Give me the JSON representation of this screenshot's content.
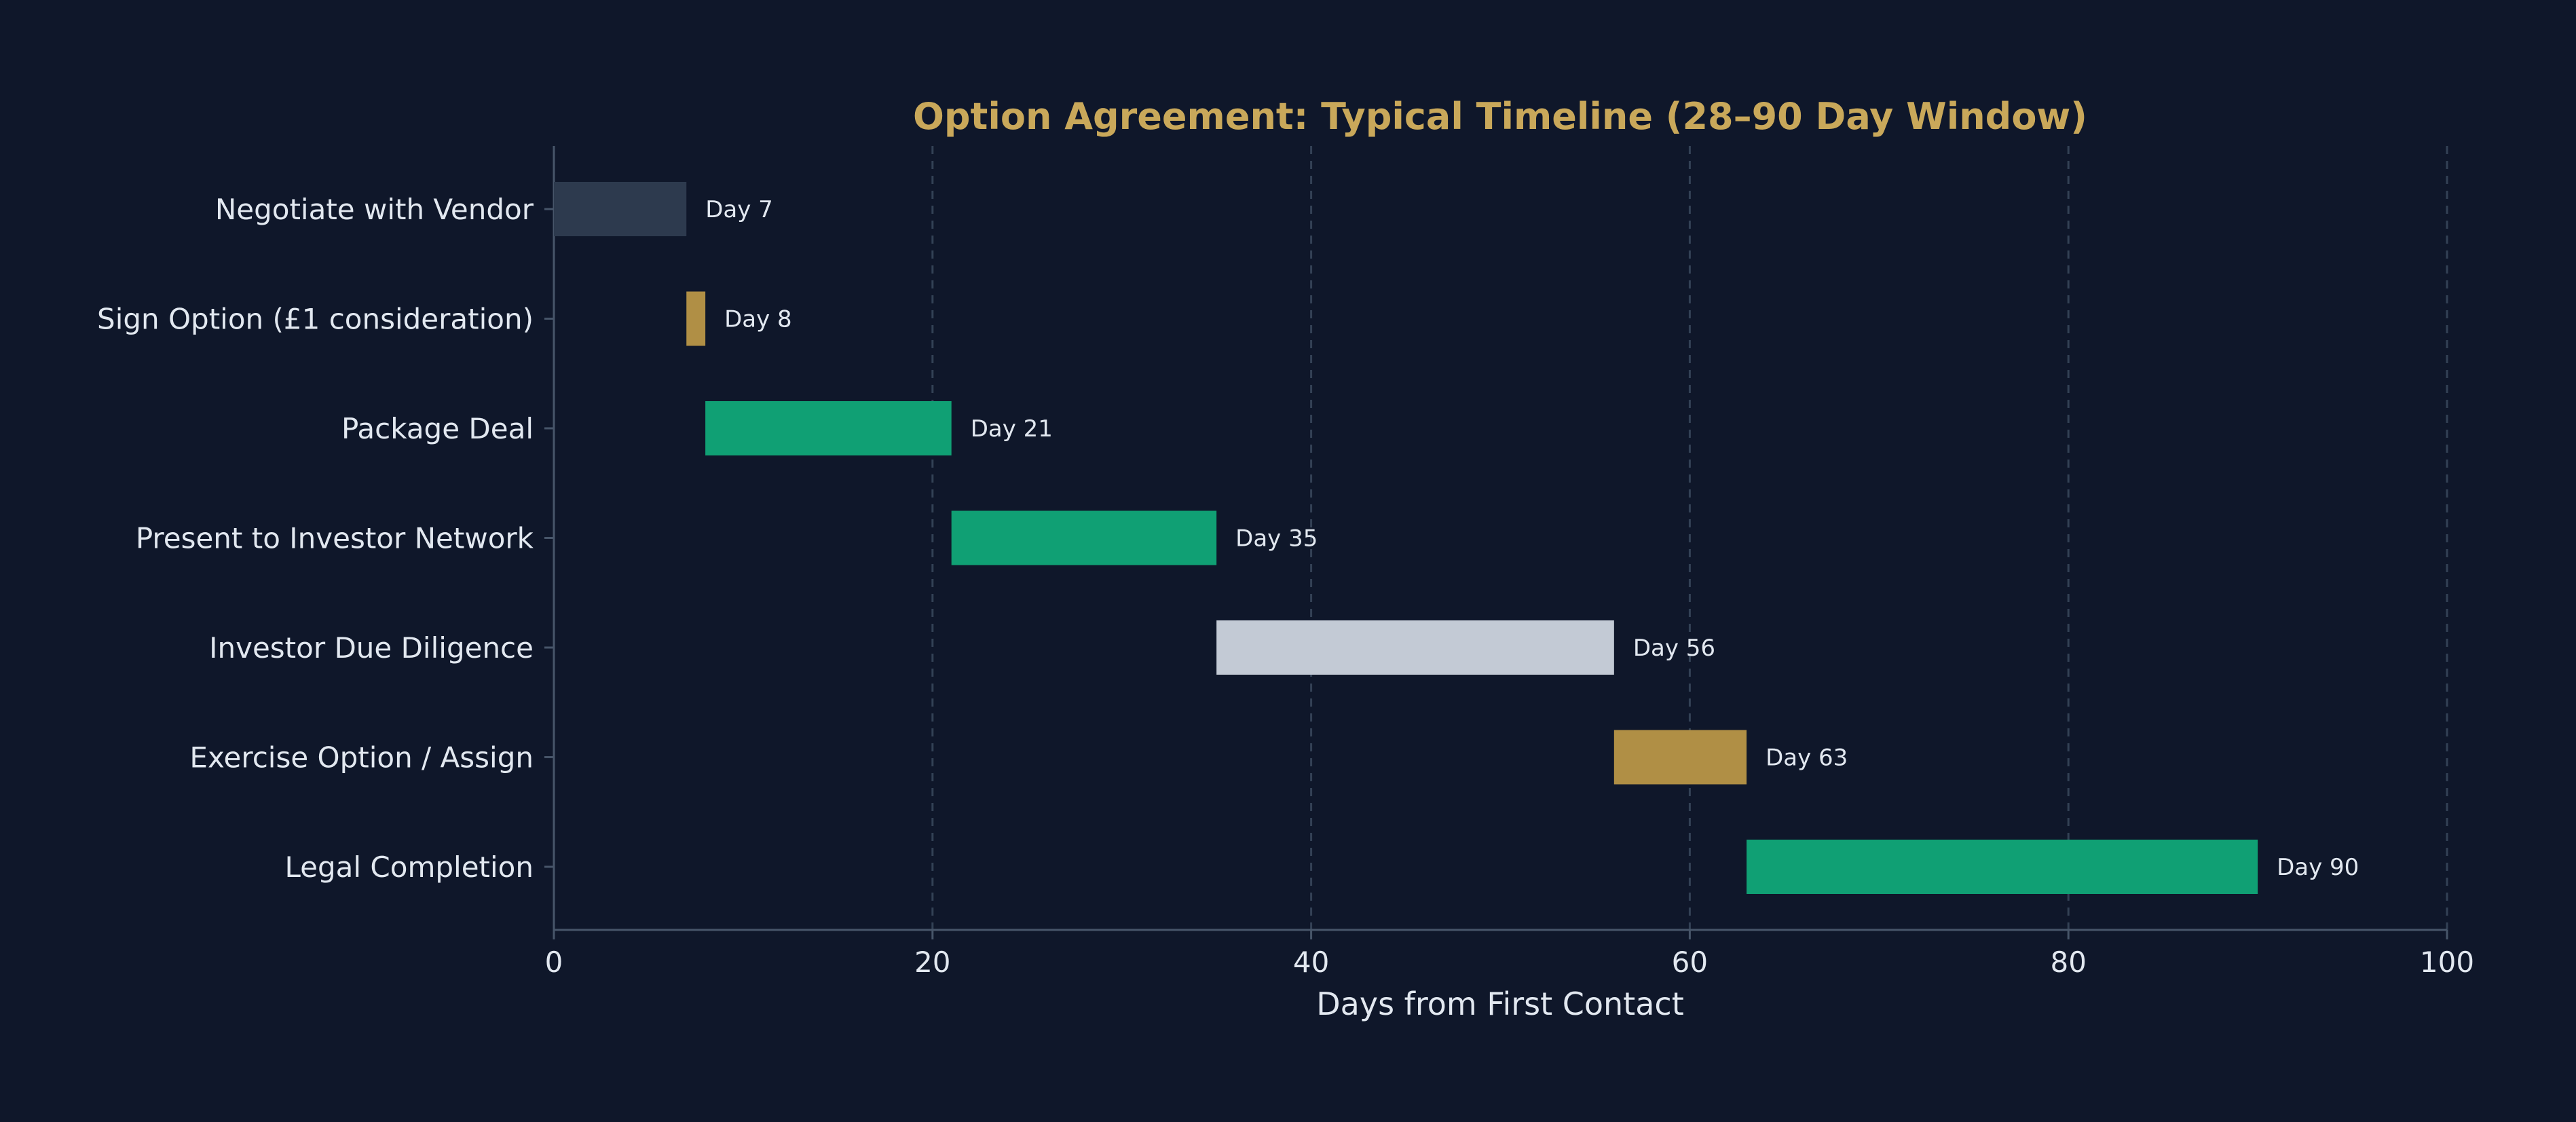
{
  "chart_data": {
    "type": "bar",
    "orientation": "horizontal",
    "subtype": "gantt",
    "title": "Option Agreement: Typical Timeline (28–90 Day Window)",
    "xlabel": "Days from First Contact",
    "ylabel": "",
    "xlim": [
      0,
      100
    ],
    "xticks": [
      0,
      20,
      40,
      60,
      80,
      100
    ],
    "xtick_labels": [
      "0",
      "20",
      "40",
      "60",
      "80",
      "100"
    ],
    "grid": "vertical dashed",
    "legend": "none",
    "tasks": [
      {
        "name": "Negotiate with Vendor",
        "start": 0,
        "end": 7,
        "label": "Day 7",
        "color": "#2d3a4e"
      },
      {
        "name": "Sign Option (£1 consideration)",
        "start": 7,
        "end": 8,
        "label": "Day 8",
        "color": "#b08f45"
      },
      {
        "name": "Package Deal",
        "start": 8,
        "end": 21,
        "label": "Day 21",
        "color": "#10a074"
      },
      {
        "name": "Present to Investor Network",
        "start": 21,
        "end": 35,
        "label": "Day 35",
        "color": "#10a074"
      },
      {
        "name": "Investor Due Diligence",
        "start": 35,
        "end": 56,
        "label": "Day 56",
        "color": "#c3cad5"
      },
      {
        "name": "Exercise Option / Assign",
        "start": 56,
        "end": 63,
        "label": "Day 63",
        "color": "#b08f45"
      },
      {
        "name": "Legal Completion",
        "start": 63,
        "end": 90,
        "label": "Day 90",
        "color": "#10a074"
      }
    ]
  },
  "colors": {
    "background": "#0f172a",
    "title": "#c9a85a",
    "text": "#e2e8f0",
    "axis": "#475569",
    "grid": "#334155"
  }
}
